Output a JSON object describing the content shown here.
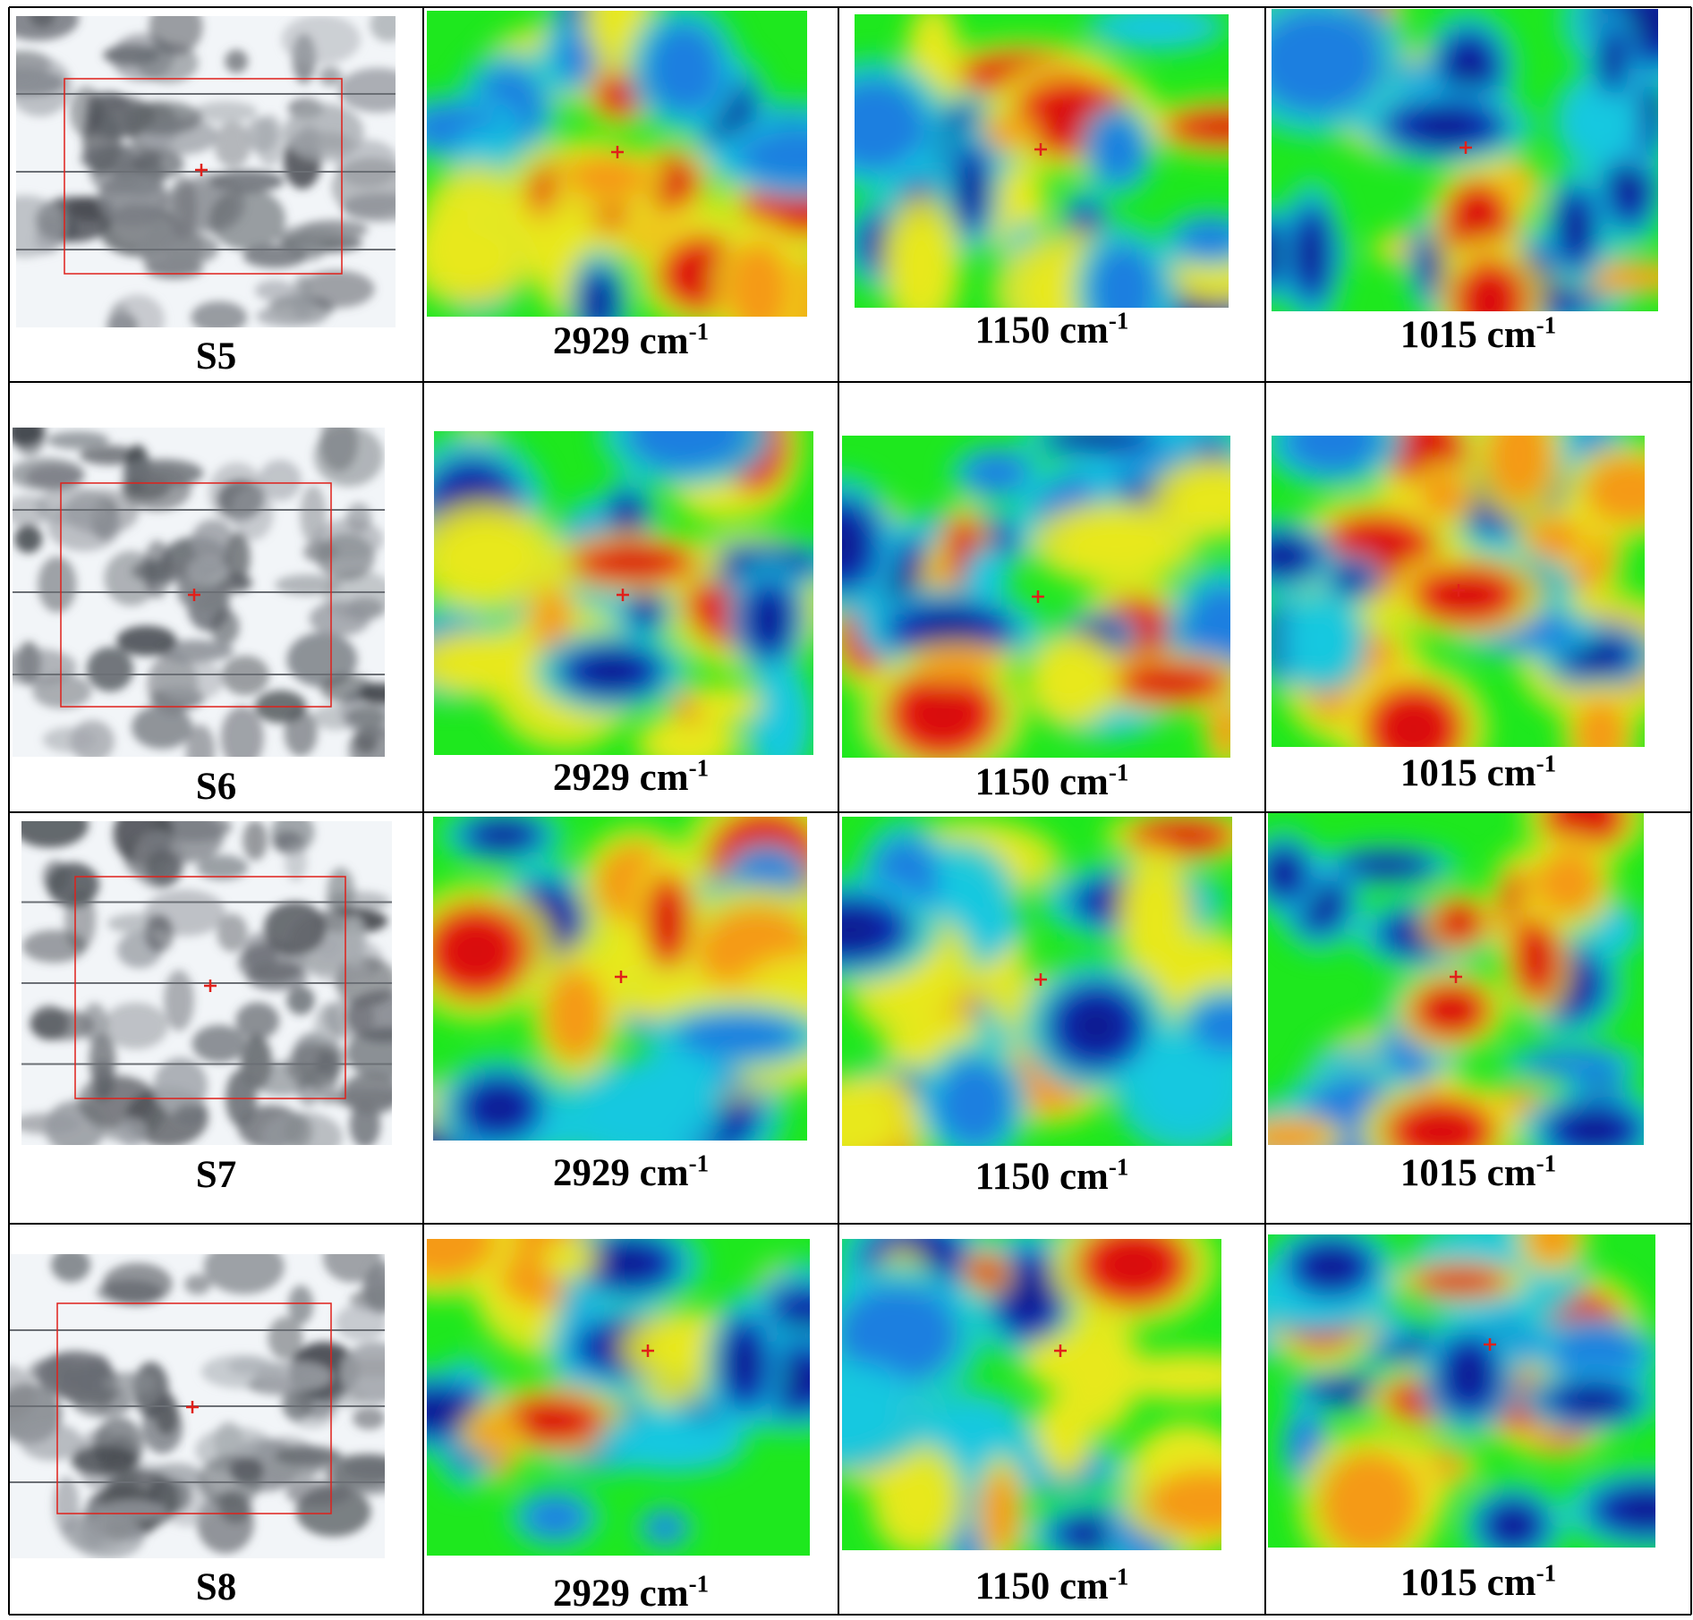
{
  "rows": [
    {
      "sample": "S5",
      "labels": [
        "2929 cm",
        "1150 cm",
        "1015 cm"
      ],
      "exponent": "-1"
    },
    {
      "sample": "S6",
      "labels": [
        "2929 cm",
        "1150 cm",
        "1015 cm"
      ],
      "exponent": "-1"
    },
    {
      "sample": "S7",
      "labels": [
        "2929 cm",
        "1150 cm",
        "1015 cm"
      ],
      "exponent": "-1"
    },
    {
      "sample": "S8",
      "labels": [
        "2929 cm",
        "1150 cm",
        "1015 cm"
      ],
      "exponent": "-1"
    }
  ],
  "colors": {
    "grid_line": "#000000",
    "marker": "#e0201a",
    "map_palette": [
      "#0a2fb8",
      "#1f7fe0",
      "#18c8e0",
      "#1ee81e",
      "#e8e81e",
      "#f59a14",
      "#e81a14"
    ]
  }
}
